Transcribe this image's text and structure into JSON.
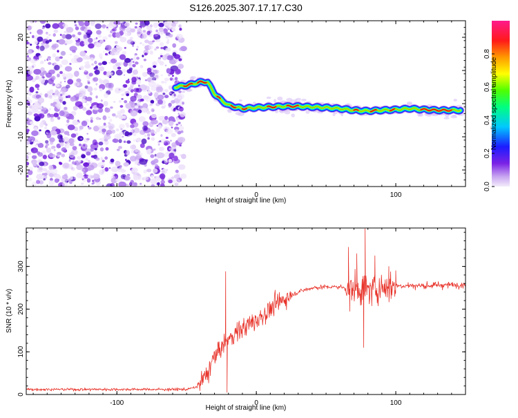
{
  "title": "S126.2025.307.17.17.C30",
  "chart_data": [
    {
      "type": "heatmap",
      "xlabel": "Height of straight line (km)",
      "ylabel": "Frequency (Hz)",
      "xlim": [
        -165,
        150
      ],
      "ylim": [
        -25,
        25
      ],
      "xticks": [
        -100,
        0,
        100
      ],
      "xtick_labels": [
        "-100",
        "0",
        "100"
      ],
      "yticks": [
        -20,
        -10,
        0,
        10,
        20
      ],
      "ytick_labels": [
        "-20",
        "-10",
        "0",
        "10",
        "20"
      ],
      "noise_region_x": [
        -165,
        -55
      ],
      "ridge": {
        "x": [
          -58,
          -50,
          -45,
          -40,
          -35,
          -30,
          -25,
          -20,
          -15,
          -10,
          0,
          10,
          20,
          30,
          40,
          50,
          60,
          70,
          80,
          90,
          100,
          110,
          120,
          130,
          140,
          147
        ],
        "freq": [
          5,
          5.5,
          6,
          6.5,
          6.5,
          3,
          1,
          -0.5,
          -1,
          -1.5,
          -1.2,
          -1,
          -0.8,
          -0.8,
          -1,
          -1.2,
          -1.5,
          -2,
          -2.2,
          -2,
          -1.8,
          -1.5,
          -1.8,
          -2,
          -2,
          -2
        ]
      },
      "colorbar": {
        "label": "Normalized spectral amplitude",
        "ticks": [
          0.0,
          0.2,
          0.4,
          0.6,
          0.8
        ],
        "tick_labels": [
          "0.0",
          "0.2",
          "0.4",
          "0.6",
          "0.8"
        ],
        "range": [
          0,
          1
        ]
      }
    },
    {
      "type": "line",
      "xlabel": "Height of straight line (km)",
      "ylabel": "SNR (10 * v/v)",
      "xlim": [
        -165,
        150
      ],
      "ylim": [
        0,
        390
      ],
      "xticks": [
        -100,
        0,
        100
      ],
      "xtick_labels": [
        "-100",
        "0",
        "100"
      ],
      "yticks": [
        0,
        100,
        200,
        300
      ],
      "ytick_labels": [
        "0",
        "100",
        "200",
        "300"
      ],
      "color": "#e8332a",
      "trend": {
        "x": [
          -165,
          -50,
          -42,
          -35,
          -30,
          -20,
          -10,
          0,
          10,
          20,
          30,
          40,
          50,
          60,
          68,
          80,
          90,
          100,
          120,
          150
        ],
        "y": [
          12,
          12,
          18,
          50,
          90,
          130,
          155,
          175,
          200,
          225,
          240,
          250,
          252,
          252,
          248,
          245,
          250,
          255,
          255,
          258
        ]
      },
      "spikes": [
        {
          "x": -22,
          "y": 288
        },
        {
          "x": -21,
          "y": 5
        },
        {
          "x": 66,
          "y": 345
        },
        {
          "x": 67,
          "y": 195
        },
        {
          "x": 72,
          "y": 330
        },
        {
          "x": 77,
          "y": 110
        },
        {
          "x": 78,
          "y": 388
        },
        {
          "x": 85,
          "y": 325
        },
        {
          "x": 95,
          "y": 300
        },
        {
          "x": 100,
          "y": 290
        }
      ]
    }
  ]
}
